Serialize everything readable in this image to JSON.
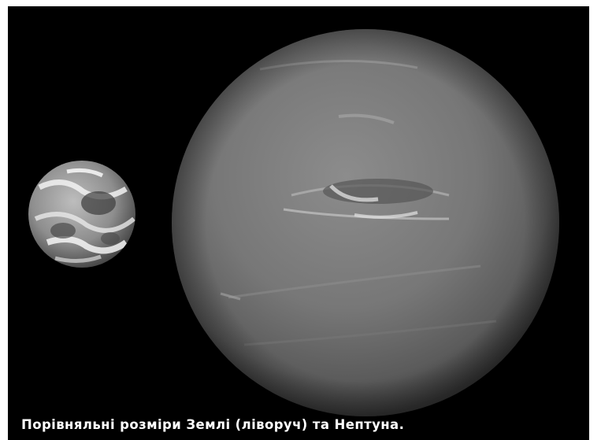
{
  "image": {
    "background_color": "#000000",
    "caption": "Порівняльні розміри Землі (ліворуч) та Нептуна.",
    "subjects": [
      "earth-icon",
      "neptune-icon"
    ]
  }
}
